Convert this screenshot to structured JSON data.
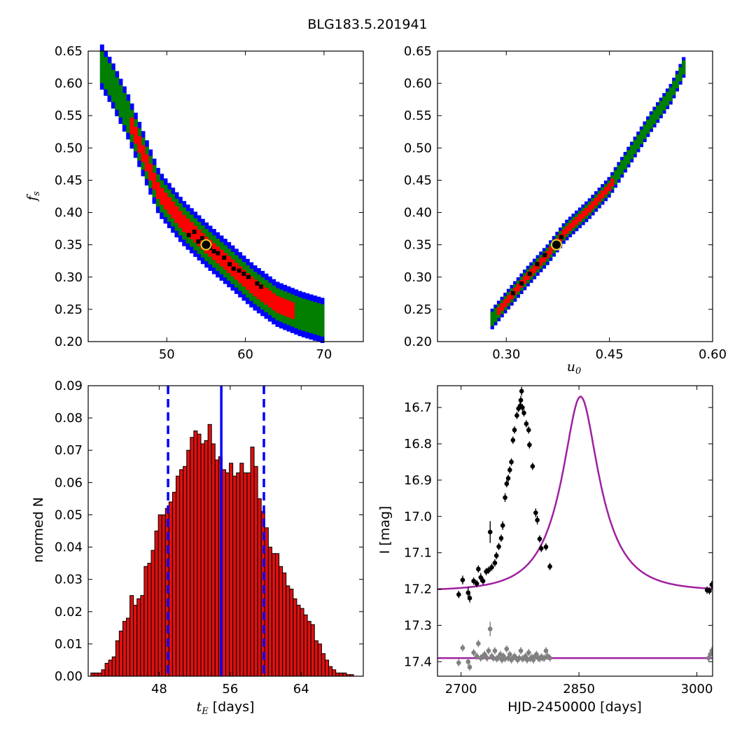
{
  "figure": {
    "suptitle": "BLG183.5.201941"
  },
  "colors": {
    "blue": "#0000ff",
    "green": "#007f00",
    "red": "#ff0000",
    "black": "#000000",
    "marker_face": "#000000",
    "marker_edge": "#e8d030",
    "hist_fill": "#dd1010",
    "model": "#a020a0",
    "gray": "#808080"
  },
  "chart_data": [
    {
      "id": "fs-vs-tE",
      "type": "heatmap",
      "title": "",
      "xlabel": "",
      "ylabel_main": "f",
      "ylabel_sub": "s",
      "xlim": [
        40,
        75
      ],
      "ylim": [
        0.2,
        0.65
      ],
      "xticks": [
        50,
        60,
        70
      ],
      "xtick_labels": [
        "50",
        "60",
        "70"
      ],
      "yticks": [
        0.2,
        0.25,
        0.3,
        0.35,
        0.4,
        0.45,
        0.5,
        0.55,
        0.6,
        0.65
      ],
      "ytick_labels": [
        "0.20",
        "0.25",
        "0.30",
        "0.35",
        "0.40",
        "0.45",
        "0.50",
        "0.55",
        "0.60",
        "0.65"
      ],
      "levels": [
        "blue",
        "green",
        "red",
        "black"
      ],
      "band": {
        "centerline": [
          [
            41.5,
            0.63
          ],
          [
            43,
            0.6
          ],
          [
            45,
            0.55
          ],
          [
            47,
            0.49
          ],
          [
            49,
            0.43
          ],
          [
            52,
            0.385
          ],
          [
            55,
            0.35
          ],
          [
            58,
            0.318
          ],
          [
            61,
            0.285
          ],
          [
            64,
            0.258
          ],
          [
            67,
            0.243
          ],
          [
            70,
            0.232
          ]
        ],
        "halfwidth_blue": 0.035,
        "halfwidth_green": 0.025,
        "halfwidth_red": 0.013,
        "red_range": [
          45,
          66
        ]
      },
      "black_points": [
        [
          52.8,
          0.365
        ],
        [
          53.5,
          0.37
        ],
        [
          54.5,
          0.36
        ],
        [
          55.5,
          0.345
        ],
        [
          56,
          0.34
        ],
        [
          56.5,
          0.337
        ],
        [
          57.3,
          0.33
        ],
        [
          58,
          0.32
        ],
        [
          58.5,
          0.313
        ],
        [
          59.2,
          0.31
        ],
        [
          59.8,
          0.305
        ],
        [
          60.4,
          0.3
        ],
        [
          61.5,
          0.29
        ],
        [
          62,
          0.285
        ],
        [
          54,
          0.355
        ]
      ],
      "best_fit": {
        "x": 55.0,
        "y": 0.35
      }
    },
    {
      "id": "fs-vs-u0",
      "type": "heatmap",
      "title": "",
      "xlabel_main": "u",
      "xlabel_sub": "0",
      "ylabel": "",
      "xlim": [
        0.2,
        0.6
      ],
      "ylim": [
        0.2,
        0.65
      ],
      "xticks": [
        0.3,
        0.45,
        0.6
      ],
      "xtick_labels": [
        "0.30",
        "0.45",
        "0.60"
      ],
      "yticks": [
        0.2,
        0.25,
        0.3,
        0.35,
        0.4,
        0.45,
        0.5,
        0.55,
        0.6,
        0.65
      ],
      "ytick_labels": [
        "0.20",
        "0.25",
        "0.30",
        "0.35",
        "0.40",
        "0.45",
        "0.50",
        "0.55",
        "0.60",
        "0.65"
      ],
      "levels": [
        "blue",
        "green",
        "red",
        "black"
      ],
      "band": {
        "centerline": [
          [
            0.277,
            0.232
          ],
          [
            0.3,
            0.262
          ],
          [
            0.33,
            0.3
          ],
          [
            0.36,
            0.335
          ],
          [
            0.385,
            0.37
          ],
          [
            0.42,
            0.405
          ],
          [
            0.45,
            0.44
          ],
          [
            0.48,
            0.49
          ],
          [
            0.51,
            0.54
          ],
          [
            0.54,
            0.585
          ],
          [
            0.56,
            0.63
          ]
        ],
        "halfwidth_blue": 0.016,
        "halfwidth_green": 0.011,
        "halfwidth_red": 0.006,
        "red_range": [
          0.285,
          0.455
        ]
      },
      "black_points": [
        [
          0.31,
          0.275
        ],
        [
          0.322,
          0.29
        ],
        [
          0.334,
          0.305
        ],
        [
          0.345,
          0.32
        ],
        [
          0.356,
          0.334
        ],
        [
          0.37,
          0.35
        ],
        [
          0.38,
          0.362
        ]
      ],
      "best_fit": {
        "x": 0.373,
        "y": 0.35
      }
    },
    {
      "id": "tE-histogram",
      "type": "bar",
      "title": "",
      "xlabel_main": "t",
      "xlabel_sub": "E",
      "xlabel_rest": " [days]",
      "ylabel": "normed N",
      "xlim": [
        40,
        71
      ],
      "ylim": [
        0,
        0.09
      ],
      "xticks": [
        48,
        56,
        64
      ],
      "xtick_labels": [
        "48",
        "56",
        "64"
      ],
      "yticks": [
        0,
        0.01,
        0.02,
        0.03,
        0.04,
        0.05,
        0.06,
        0.07,
        0.08,
        0.09
      ],
      "ytick_labels": [
        "0.00",
        "0.01",
        "0.02",
        "0.03",
        "0.04",
        "0.05",
        "0.06",
        "0.07",
        "0.08",
        "0.09"
      ],
      "bin_start": 40.3,
      "bin_width": 0.4,
      "values": [
        0.001,
        0.001,
        0.001,
        0.002,
        0.004,
        0.005,
        0.006,
        0.011,
        0.014,
        0.017,
        0.018,
        0.025,
        0.022,
        0.024,
        0.025,
        0.034,
        0.035,
        0.039,
        0.045,
        0.05,
        0.05,
        0.052,
        0.054,
        0.057,
        0.062,
        0.064,
        0.065,
        0.07,
        0.074,
        0.076,
        0.075,
        0.072,
        0.073,
        0.078,
        0.072,
        0.067,
        0.068,
        0.064,
        0.063,
        0.066,
        0.062,
        0.063,
        0.066,
        0.063,
        0.063,
        0.071,
        0.065,
        0.055,
        0.051,
        0.046,
        0.04,
        0.038,
        0.038,
        0.034,
        0.032,
        0.028,
        0.027,
        0.024,
        0.022,
        0.021,
        0.019,
        0.017,
        0.016,
        0.011,
        0.01,
        0.007,
        0.005,
        0.003,
        0.002,
        0.001,
        0.001,
        0.001,
        0.0005,
        0.0005
      ],
      "vline_solid": 55.0,
      "vlines_dashed": [
        49.0,
        59.8
      ]
    },
    {
      "id": "lightcurve",
      "type": "scatter",
      "title": "",
      "xlabel": "HJD-2450000 [days]",
      "ylabel": "I [mag]",
      "xlim": [
        2670,
        3020
      ],
      "ylim": [
        17.44,
        16.64
      ],
      "xticks": [
        2700,
        2850,
        3000
      ],
      "xtick_labels": [
        "2700",
        "2850",
        "3000"
      ],
      "yticks": [
        16.7,
        16.8,
        16.9,
        17.0,
        17.1,
        17.2,
        17.3,
        17.4
      ],
      "ytick_labels": [
        "16.7",
        "16.8",
        "16.9",
        "17.0",
        "17.1",
        "17.2",
        "17.3",
        "17.4"
      ],
      "model": {
        "t0": 2852,
        "tE": 55,
        "u0": 0.373,
        "fs": 0.35,
        "base": 17.205
      },
      "series": [
        {
          "name": "",
          "color": "black",
          "points": [
            [
              2697,
              17.215,
              0.01
            ],
            [
              2702,
              17.175,
              0.012
            ],
            [
              2709,
              17.21,
              0.015
            ],
            [
              2711,
              17.225,
              0.012
            ],
            [
              2716,
              17.178,
              0.01
            ],
            [
              2720,
              17.185,
              0.01
            ],
            [
              2722,
              17.145,
              0.01
            ],
            [
              2725,
              17.168,
              0.012
            ],
            [
              2728,
              17.178,
              0.01
            ],
            [
              2732,
              17.152,
              0.01
            ],
            [
              2735,
              17.148,
              0.01
            ],
            [
              2737,
              17.043,
              0.03
            ],
            [
              2739,
              17.14,
              0.01
            ],
            [
              2743,
              17.128,
              0.01
            ],
            [
              2745,
              17.108,
              0.01
            ],
            [
              2748,
              17.083,
              0.01
            ],
            [
              2751,
              17.06,
              0.01
            ],
            [
              2753,
              17.025,
              0.012
            ],
            [
              2756,
              16.948,
              0.012
            ],
            [
              2758,
              16.91,
              0.01
            ],
            [
              2760,
              16.895,
              0.01
            ],
            [
              2762,
              16.872,
              0.01
            ],
            [
              2764,
              16.85,
              0.01
            ],
            [
              2766,
              16.79,
              0.01
            ],
            [
              2768,
              16.762,
              0.01
            ],
            [
              2771,
              16.722,
              0.01
            ],
            [
              2773,
              16.703,
              0.01
            ],
            [
              2775,
              16.696,
              0.01
            ],
            [
              2776,
              16.68,
              0.012
            ],
            [
              2777,
              16.655,
              0.012
            ],
            [
              2778,
              16.7,
              0.01
            ],
            [
              2780,
              16.715,
              0.01
            ],
            [
              2783,
              16.745,
              0.01
            ],
            [
              2786,
              16.762,
              0.01
            ],
            [
              2787,
              16.803,
              0.01
            ],
            [
              2791,
              16.862,
              0.01
            ],
            [
              2795,
              16.99,
              0.012
            ],
            [
              2797,
              17.01,
              0.012
            ],
            [
              2800,
              17.062,
              0.01
            ],
            [
              2802,
              17.088,
              0.01
            ],
            [
              2808,
              17.084,
              0.01
            ],
            [
              2813,
              17.138,
              0.01
            ],
            [
              3013,
              17.203,
              0.01
            ],
            [
              3016,
              17.205,
              0.01
            ],
            [
              3019,
              17.188,
              0.01
            ]
          ]
        },
        {
          "name": "",
          "color": "gray",
          "points": [
            [
              2697,
              17.403,
              0.01
            ],
            [
              2702,
              17.362,
              0.01
            ],
            [
              2709,
              17.4,
              0.01
            ],
            [
              2711,
              17.415,
              0.01
            ],
            [
              2716,
              17.375,
              0.01
            ],
            [
              2720,
              17.385,
              0.01
            ],
            [
              2722,
              17.35,
              0.01
            ],
            [
              2725,
              17.39,
              0.01
            ],
            [
              2728,
              17.385,
              0.01
            ],
            [
              2730,
              17.38,
              0.01
            ],
            [
              2733,
              17.39,
              0.01
            ],
            [
              2735,
              17.37,
              0.01
            ],
            [
              2737,
              17.31,
              0.02
            ],
            [
              2739,
              17.385,
              0.01
            ],
            [
              2741,
              17.39,
              0.01
            ],
            [
              2743,
              17.37,
              0.01
            ],
            [
              2745,
              17.392,
              0.01
            ],
            [
              2747,
              17.39,
              0.01
            ],
            [
              2750,
              17.38,
              0.01
            ],
            [
              2752,
              17.395,
              0.01
            ],
            [
              2754,
              17.385,
              0.01
            ],
            [
              2756,
              17.392,
              0.01
            ],
            [
              2758,
              17.365,
              0.01
            ],
            [
              2760,
              17.39,
              0.01
            ],
            [
              2762,
              17.38,
              0.01
            ],
            [
              2764,
              17.395,
              0.01
            ],
            [
              2766,
              17.39,
              0.01
            ],
            [
              2768,
              17.385,
              0.01
            ],
            [
              2770,
              17.39,
              0.01
            ],
            [
              2772,
              17.395,
              0.01
            ],
            [
              2774,
              17.39,
              0.01
            ],
            [
              2776,
              17.37,
              0.01
            ],
            [
              2778,
              17.392,
              0.01
            ],
            [
              2780,
              17.39,
              0.01
            ],
            [
              2782,
              17.385,
              0.01
            ],
            [
              2784,
              17.395,
              0.01
            ],
            [
              2786,
              17.375,
              0.01
            ],
            [
              2788,
              17.392,
              0.01
            ],
            [
              2790,
              17.388,
              0.01
            ],
            [
              2792,
              17.395,
              0.01
            ],
            [
              2794,
              17.385,
              0.01
            ],
            [
              2796,
              17.38,
              0.01
            ],
            [
              2798,
              17.39,
              0.01
            ],
            [
              2800,
              17.392,
              0.01
            ],
            [
              2802,
              17.387,
              0.01
            ],
            [
              2804,
              17.39,
              0.01
            ],
            [
              2806,
              17.39,
              0.01
            ],
            [
              2808,
              17.37,
              0.01
            ],
            [
              2810,
              17.385,
              0.01
            ],
            [
              2813,
              17.39,
              0.01
            ],
            [
              3015,
              17.39,
              0.01
            ],
            [
              3017,
              17.38,
              0.01
            ],
            [
              3019,
              17.37,
              0.01
            ]
          ]
        }
      ]
    }
  ]
}
